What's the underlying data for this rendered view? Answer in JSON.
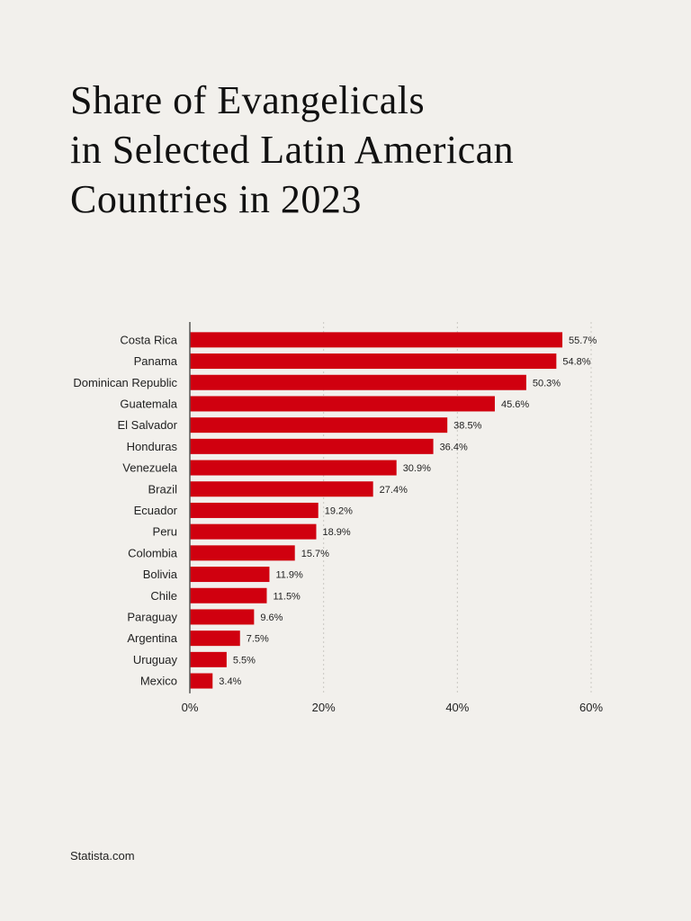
{
  "title_lines": [
    "Share of Evangelicals",
    "in Selected Latin American",
    "Countries in 2023"
  ],
  "source": "Statista.com",
  "colors": {
    "bar": "#d0000f",
    "background": "#f2f0ec",
    "text": "#222222",
    "grid": "#c9c7c2",
    "axis": "#555555"
  },
  "chart_data": {
    "type": "bar",
    "orientation": "horizontal",
    "categories": [
      "Costa Rica",
      "Panama",
      "Dominican Republic",
      "Guatemala",
      "El Salvador",
      "Honduras",
      "Venezuela",
      "Brazil",
      "Ecuador",
      "Peru",
      "Colombia",
      "Bolivia",
      "Chile",
      "Paraguay",
      "Argentina",
      "Uruguay",
      "Mexico"
    ],
    "values": [
      55.7,
      54.8,
      50.3,
      45.6,
      38.5,
      36.4,
      30.9,
      27.4,
      19.2,
      18.9,
      15.7,
      11.9,
      11.5,
      9.6,
      7.5,
      5.5,
      3.4
    ],
    "value_labels": [
      "55.7%",
      "54.8%",
      "50.3%",
      "45.6%",
      "38.5%",
      "36.4%",
      "30.9%",
      "27.4%",
      "19.2%",
      "18.9%",
      "15.7%",
      "11.9%",
      "11.5%",
      "9.6%",
      "7.5%",
      "5.5%",
      "3.4%"
    ],
    "xlim": [
      0,
      60
    ],
    "x_ticks": [
      0,
      20,
      40,
      60
    ],
    "x_tick_labels": [
      "0%",
      "20%",
      "40%",
      "60%"
    ],
    "grid": true
  }
}
